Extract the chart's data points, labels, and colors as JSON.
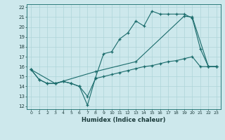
{
  "xlabel": "Humidex (Indice chaleur)",
  "xlim": [
    -0.5,
    23.5
  ],
  "ylim": [
    11.7,
    22.3
  ],
  "xticks": [
    0,
    1,
    2,
    3,
    4,
    5,
    6,
    7,
    8,
    9,
    10,
    11,
    12,
    13,
    14,
    15,
    16,
    17,
    18,
    19,
    20,
    21,
    22,
    23
  ],
  "yticks": [
    12,
    13,
    14,
    15,
    16,
    17,
    18,
    19,
    20,
    21,
    22
  ],
  "bg_color": "#cde8ec",
  "grid_color": "#aed4d8",
  "line_color": "#1a6b6b",
  "line1_x": [
    0,
    1,
    2,
    3,
    4,
    5,
    6,
    7,
    8,
    9,
    10,
    11,
    12,
    13,
    14,
    15,
    16,
    17,
    18,
    19,
    20,
    21,
    22,
    23
  ],
  "line1_y": [
    15.7,
    14.7,
    14.3,
    14.3,
    14.5,
    14.3,
    14.0,
    12.1,
    14.9,
    17.3,
    17.5,
    18.8,
    19.4,
    20.6,
    20.1,
    21.6,
    21.3,
    21.3,
    21.3,
    21.3,
    20.9,
    17.8,
    16.0,
    16.0
  ],
  "line2_x": [
    0,
    1,
    2,
    3,
    4,
    5,
    6,
    7,
    8,
    9,
    10,
    11,
    12,
    13,
    14,
    15,
    16,
    17,
    18,
    19,
    20,
    21,
    22,
    23
  ],
  "line2_y": [
    15.7,
    14.7,
    14.3,
    14.3,
    14.5,
    14.3,
    14.0,
    13.0,
    14.8,
    15.0,
    15.2,
    15.4,
    15.6,
    15.8,
    16.0,
    16.1,
    16.3,
    16.5,
    16.6,
    16.8,
    17.0,
    16.0,
    16.0,
    16.0
  ],
  "line3_x": [
    0,
    3,
    8,
    13,
    19,
    20,
    22,
    23
  ],
  "line3_y": [
    15.7,
    14.3,
    15.5,
    16.5,
    21.1,
    21.0,
    16.0,
    16.0
  ]
}
